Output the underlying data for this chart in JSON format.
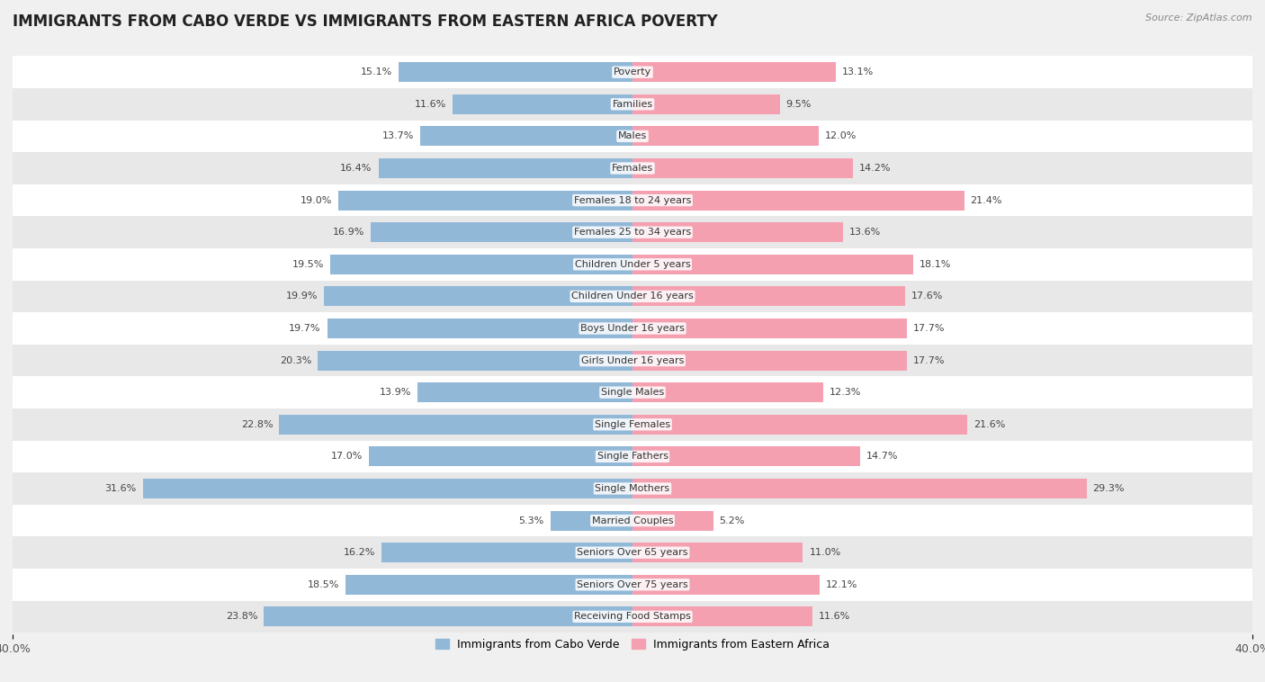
{
  "title": "IMMIGRANTS FROM CABO VERDE VS IMMIGRANTS FROM EASTERN AFRICA POVERTY",
  "source": "Source: ZipAtlas.com",
  "categories": [
    "Poverty",
    "Families",
    "Males",
    "Females",
    "Females 18 to 24 years",
    "Females 25 to 34 years",
    "Children Under 5 years",
    "Children Under 16 years",
    "Boys Under 16 years",
    "Girls Under 16 years",
    "Single Males",
    "Single Females",
    "Single Fathers",
    "Single Mothers",
    "Married Couples",
    "Seniors Over 65 years",
    "Seniors Over 75 years",
    "Receiving Food Stamps"
  ],
  "cabo_verde": [
    15.1,
    11.6,
    13.7,
    16.4,
    19.0,
    16.9,
    19.5,
    19.9,
    19.7,
    20.3,
    13.9,
    22.8,
    17.0,
    31.6,
    5.3,
    16.2,
    18.5,
    23.8
  ],
  "eastern_africa": [
    13.1,
    9.5,
    12.0,
    14.2,
    21.4,
    13.6,
    18.1,
    17.6,
    17.7,
    17.7,
    12.3,
    21.6,
    14.7,
    29.3,
    5.2,
    11.0,
    12.1,
    11.6
  ],
  "cabo_verde_color": "#92b8d8",
  "eastern_africa_color": "#f4a0b0",
  "cabo_verde_label": "Immigrants from Cabo Verde",
  "eastern_africa_label": "Immigrants from Eastern Africa",
  "xlim": 40.0,
  "background_color": "#f0f0f0",
  "bar_background_even": "#ffffff",
  "bar_background_odd": "#e8e8e8",
  "title_fontsize": 12,
  "label_fontsize": 8,
  "tick_fontsize": 9,
  "value_fontsize": 8
}
